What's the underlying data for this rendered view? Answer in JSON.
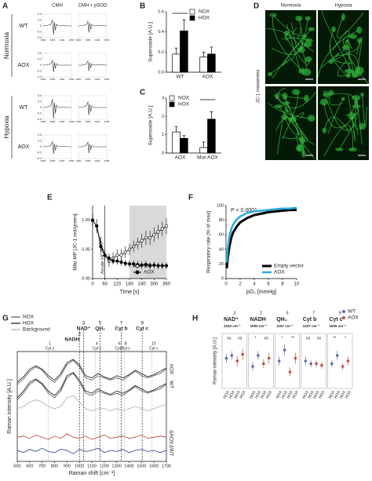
{
  "panels": [
    "A",
    "B",
    "C",
    "D",
    "E",
    "F",
    "G",
    "H"
  ],
  "panel_d": {
    "columns": [
      "Normoxia",
      "Hypoxia"
    ],
    "rows": [
      "WT",
      "AOX"
    ],
    "side_label": "JC-1 monomers",
    "scale_bar": "50 µm"
  },
  "chart_data": [
    {
      "type": "epr",
      "columns": [
        "CMH",
        "CMH + pSOD"
      ],
      "groups": [
        {
          "label": "Normoxia",
          "rows": [
            "WT",
            "AOX"
          ]
        },
        {
          "label": "Hypoxia",
          "rows": [
            "WT",
            "AOX"
          ]
        }
      ],
      "x": [
        3300,
        3320,
        3340,
        3350,
        3355,
        3360,
        3365,
        3370,
        3380,
        3400,
        3450
      ],
      "spectra": [
        [
          0,
          0.01,
          0.05,
          0.2,
          -0.3,
          0.12,
          -0.15,
          0.06,
          0,
          0.01,
          0
        ],
        [
          0,
          0.01,
          0.04,
          0.15,
          -0.22,
          0.1,
          -0.12,
          0.05,
          0,
          0.01,
          0
        ],
        [
          0,
          0.01,
          0.04,
          0.16,
          -0.24,
          0.1,
          -0.12,
          0.05,
          0,
          0,
          0
        ],
        [
          0,
          0,
          0.03,
          0.14,
          -0.2,
          0.08,
          -0.1,
          0.04,
          0,
          0.01,
          0
        ],
        [
          0,
          0.01,
          0.06,
          0.28,
          -0.38,
          0.16,
          -0.2,
          0.08,
          0,
          0.01,
          0
        ],
        [
          0,
          0.01,
          0.05,
          0.18,
          -0.26,
          0.11,
          -0.14,
          0.05,
          0,
          0,
          0
        ],
        [
          0,
          0.01,
          0.04,
          0.17,
          -0.25,
          0.1,
          -0.13,
          0.05,
          0,
          0.01,
          0
        ],
        [
          0,
          0,
          0.04,
          0.15,
          -0.22,
          0.09,
          -0.11,
          0.04,
          0,
          0,
          0
        ]
      ],
      "xlim": [
        3300,
        3450
      ],
      "xticks": [
        3300,
        3350,
        3400,
        3450
      ],
      "ylim": [
        -0.4,
        0.4
      ],
      "yticks": [
        0.4,
        0.2,
        0,
        -0.2,
        -0.4
      ],
      "grid": true
    },
    {
      "type": "bar",
      "y_label": "Superoxide [A.U.]",
      "categories": [
        "WT",
        "AOX"
      ],
      "series": [
        {
          "name": "NOX",
          "color": "#ffffff",
          "values": [
            0.18,
            0.15
          ],
          "errors": [
            0.06,
            0.05
          ]
        },
        {
          "name": "HOX",
          "color": "#000000",
          "values": [
            0.41,
            0.18
          ],
          "errors": [
            0.11,
            0.07
          ]
        }
      ],
      "ylim": [
        0,
        0.6
      ],
      "yticks": [
        {
          "value": 0,
          "label": "0.0"
        },
        0.2,
        0.4,
        0.6
      ],
      "legend": "upper right",
      "significant": [
        0
      ]
    },
    {
      "type": "bar",
      "y_label": "Superoxide [A.U.]",
      "categories": [
        "AOX",
        "Mut-AOX"
      ],
      "series": [
        {
          "name": "NOX",
          "color": "#ffffff",
          "values": [
            1.15,
            0.3
          ],
          "errors": [
            0.3,
            0.3
          ]
        },
        {
          "name": "HOX",
          "color": "#000000",
          "values": [
            0.8,
            1.85
          ],
          "errors": [
            0.15,
            0.4
          ]
        }
      ],
      "ylim": [
        0,
        3
      ],
      "yticks": [
        0,
        1,
        2,
        3
      ],
      "legend": "upper left",
      "significant": [
        1
      ]
    },
    {
      "type": "line",
      "x_label": "Time [s]",
      "y_label": "Mito MP [JC-1 red/green]",
      "x": [
        0,
        20,
        40,
        60,
        80,
        100,
        120,
        140,
        160,
        180,
        200,
        220,
        240,
        260,
        280,
        300,
        320,
        340,
        360
      ],
      "series": [
        {
          "name": "WT",
          "color": "#000000",
          "marker": "open",
          "values": [
            1.0,
            0.99,
            0.96,
            0.94,
            0.93,
            0.935,
            0.94,
            0.94,
            0.945,
            0.95,
            0.955,
            0.96,
            0.965,
            0.97,
            0.97,
            0.975,
            0.98,
            0.985,
            0.99
          ],
          "errors": [
            0.01,
            0.012,
            0.012,
            0.01,
            0.01,
            0.01,
            0.01,
            0.01,
            0.01,
            0.01,
            0.01,
            0.01,
            0.012,
            0.012,
            0.012,
            0.012,
            0.012,
            0.012,
            0.014
          ]
        },
        {
          "name": "AOX",
          "color": "#000000",
          "marker": "filled",
          "values": [
            1.0,
            0.99,
            0.955,
            0.94,
            0.935,
            0.93,
            0.93,
            0.928,
            0.926,
            0.925,
            0.925,
            0.924,
            0.923,
            0.924,
            0.922,
            0.923,
            0.922,
            0.922,
            0.922
          ],
          "errors": [
            0.01,
            0.01,
            0.01,
            0.008,
            0.008,
            0.006,
            0.006,
            0.006,
            0.006,
            0.006,
            0.006,
            0.006,
            0.006,
            0.006,
            0.006,
            0.006,
            0.006,
            0.006,
            0.006
          ]
        }
      ],
      "xlim": [
        0,
        360
      ],
      "xticks": [
        0,
        60,
        120,
        180,
        240,
        300,
        360
      ],
      "ylim": [
        0.9,
        1.025
      ],
      "yticks": [
        {
          "value": 0.9,
          "label": "0.90"
        },
        0.95,
        {
          "value": 1,
          "label": "1.00"
        }
      ],
      "shade": [
        180,
        360
      ],
      "annotation": {
        "x": 60,
        "text": "Acute HOX"
      },
      "legend": "lower right"
    },
    {
      "type": "line",
      "x_label": "pO₂ [mmHg]",
      "y_label": "Respiratory rate [% of max]",
      "x": [
        0.1,
        0.25,
        0.5,
        0.75,
        1,
        1.5,
        2,
        3,
        4,
        5,
        6,
        7,
        8,
        9,
        10
      ],
      "series": [
        {
          "name": "Empty vector",
          "color": "#000000",
          "width": 3,
          "values": [
            14,
            29,
            45,
            56,
            63,
            71,
            77,
            83,
            87,
            89,
            91,
            92,
            93,
            94,
            94
          ]
        },
        {
          "name": "AOX",
          "color": "#29abe2",
          "width": 2.5,
          "values": [
            22,
            42,
            59,
            68,
            74,
            81,
            85,
            90,
            92,
            93,
            94,
            95,
            96,
            96,
            97
          ]
        }
      ],
      "xlim": [
        0,
        10
      ],
      "xticks": [
        0,
        2,
        4,
        6,
        8,
        10
      ],
      "ylim": [
        0,
        100
      ],
      "yticks": [
        0,
        20,
        40,
        60,
        80,
        100
      ],
      "text": "P < 0.0001",
      "legend": "lower right"
    },
    {
      "type": "raman",
      "x_label": "Raman shift [cm⁻¹]",
      "y_label": "Raman intensity [A.U.]",
      "x": [
        500,
        550,
        600,
        650,
        700,
        750,
        800,
        850,
        900,
        950,
        1000,
        1050,
        1100,
        1150,
        1200,
        1250,
        1300,
        1350,
        1400,
        1450,
        1500,
        1550,
        1600,
        1650,
        1700
      ],
      "series": [
        {
          "name": "NOX",
          "color": "#555555",
          "label": "WT",
          "values": [
            5.6,
            6.2,
            7.0,
            7.4,
            7.0,
            6.2,
            5.8,
            6.4,
            7.6,
            8.0,
            7.2,
            6.2,
            6.0,
            6.4,
            6.2,
            6.0,
            6.2,
            6.0,
            6.4,
            6.8,
            6.4,
            6.2,
            6.4,
            6.6,
            7.0
          ]
        },
        {
          "name": "HOX",
          "color": "#111111",
          "values": [
            5.8,
            6.4,
            7.2,
            7.5,
            7.1,
            6.4,
            6.0,
            6.6,
            7.8,
            8.1,
            7.4,
            6.4,
            6.2,
            6.6,
            6.3,
            6.1,
            6.4,
            6.2,
            6.5,
            6.9,
            6.6,
            6.3,
            6.5,
            6.8,
            7.1
          ]
        },
        {
          "color": "#555555",
          "label": "AOX",
          "values": [
            7.0,
            7.5,
            8.2,
            8.6,
            8.3,
            7.6,
            7.2,
            7.8,
            8.8,
            9.2,
            8.6,
            7.6,
            7.4,
            7.8,
            7.6,
            7.4,
            7.6,
            7.4,
            7.8,
            8.2,
            7.8,
            7.6,
            7.8,
            8.0,
            8.4
          ]
        },
        {
          "color": "#111111",
          "values": [
            7.2,
            7.7,
            8.4,
            8.7,
            8.4,
            7.8,
            7.4,
            8.0,
            9.0,
            9.3,
            8.8,
            7.8,
            7.6,
            8.0,
            7.7,
            7.5,
            7.8,
            7.6,
            7.9,
            8.3,
            8.0,
            7.7,
            7.9,
            8.2,
            8.5
          ]
        },
        {
          "name": "Background",
          "color": "#aaaaaa",
          "values": [
            4.8,
            5.0,
            5.4,
            5.6,
            5.4,
            5.0,
            4.8,
            5.0,
            5.8,
            6.0,
            5.4,
            4.8,
            4.6,
            4.8,
            4.8,
            4.6,
            4.8,
            4.6,
            4.8,
            5.0,
            4.8,
            4.6,
            4.8,
            5.0,
            5.2
          ]
        },
        {
          "color": "#c0392b",
          "label": "ΔAOX",
          "values": [
            2.2,
            2.3,
            2.1,
            2.4,
            2.2,
            2.0,
            2.3,
            2.1,
            2.5,
            2.2,
            2.1,
            2.3,
            2.0,
            2.2,
            2.4,
            2.1,
            2.2,
            2.3,
            2.1,
            2.2,
            2.4,
            2.1,
            2.2,
            2.3,
            2.2
          ]
        },
        {
          "color": "#2c3e8f",
          "label": "ΔWT",
          "values": [
            1.0,
            0.8,
            1.1,
            0.9,
            1.2,
            0.9,
            0.8,
            1.1,
            1.0,
            0.7,
            1.1,
            0.9,
            1.0,
            1.2,
            0.8,
            1.0,
            0.9,
            1.1,
            0.8,
            1.0,
            1.1,
            0.9,
            1.0,
            0.8,
            1.0
          ]
        }
      ],
      "xlim": [
        500,
        1700
      ],
      "xticks": [
        500,
        600,
        700,
        800,
        900,
        1000,
        1100,
        1200,
        1300,
        1400,
        1500,
        1600,
        1700
      ],
      "ylim": [
        0,
        10
      ],
      "peaks": [
        {
          "position": 750,
          "number": 1,
          "label": "Cyt c"
        },
        {
          "position": 1000,
          "number": 2,
          "label": "NADH",
          "strong": true
        },
        {
          "position": 1033,
          "number": 3,
          "label": "NAD⁺",
          "strong": true
        },
        {
          "position": 1128,
          "number": 4,
          "label": "Cyt c"
        },
        {
          "position": 1167,
          "number": 5,
          "label": "QH₂",
          "strong": true
        },
        {
          "position": 1310,
          "number": 6,
          "label": "Cyt c"
        },
        {
          "position": 1337,
          "number": 7,
          "label": "Cyt b",
          "strong": true
        },
        {
          "position": 1360,
          "number": 8,
          "label": "Cyt c"
        },
        {
          "position": 1505,
          "number": 9,
          "label": "Cyt c",
          "strong": true
        },
        {
          "position": 1585,
          "number": 10,
          "label": "Cyt c"
        }
      ]
    },
    {
      "type": "dot",
      "y_label": "Raman intensity [A.U.]",
      "categories": [
        "NOX",
        "HOX",
        "NOX",
        "HOX"
      ],
      "series": [
        {
          "name": "WT",
          "color": "#5a6fb0"
        },
        {
          "name": "AOX",
          "color": "#c0504d"
        }
      ],
      "groups": [
        {
          "number": 3,
          "title": "NAD⁺",
          "wavenumber": "1033 cm⁻¹",
          "significance": [
            "ns",
            "ns"
          ],
          "values": [
            0.55,
            0.6,
            0.5,
            0.62
          ],
          "errors": [
            0.08,
            0.08,
            0.1,
            0.1
          ]
        },
        {
          "number": 2,
          "title": "NADH",
          "wavenumber": "1000 cm⁻¹",
          "significance": [
            "*",
            "ns"
          ],
          "values": [
            0.4,
            0.6,
            0.45,
            0.55
          ],
          "errors": [
            0.08,
            0.08,
            0.08,
            0.1
          ]
        },
        {
          "number": 5,
          "title": "QH₂",
          "wavenumber": "1167 cm⁻¹",
          "significance": [
            "*",
            "**"
          ],
          "values": [
            0.5,
            0.7,
            0.3,
            0.55
          ],
          "errors": [
            0.08,
            0.1,
            0.08,
            0.1
          ]
        },
        {
          "number": 7,
          "title": "Cyt b",
          "wavenumber": "1337 cm⁻¹",
          "significance": [
            "ns",
            "ns"
          ],
          "values": [
            0.5,
            0.45,
            0.45,
            0.42
          ],
          "errors": [
            0.08,
            0.06,
            0.06,
            0.06
          ]
        },
        {
          "number": 9,
          "title": "Cyt c",
          "wavenumber": "1505 cm⁻¹",
          "significance": [
            "**",
            "*"
          ],
          "values": [
            0.45,
            0.6,
            0.4,
            0.5
          ],
          "errors": [
            0.06,
            0.08,
            0.06,
            0.08
          ]
        }
      ],
      "ylim": [
        0,
        1
      ],
      "legend": "upper right"
    }
  ]
}
